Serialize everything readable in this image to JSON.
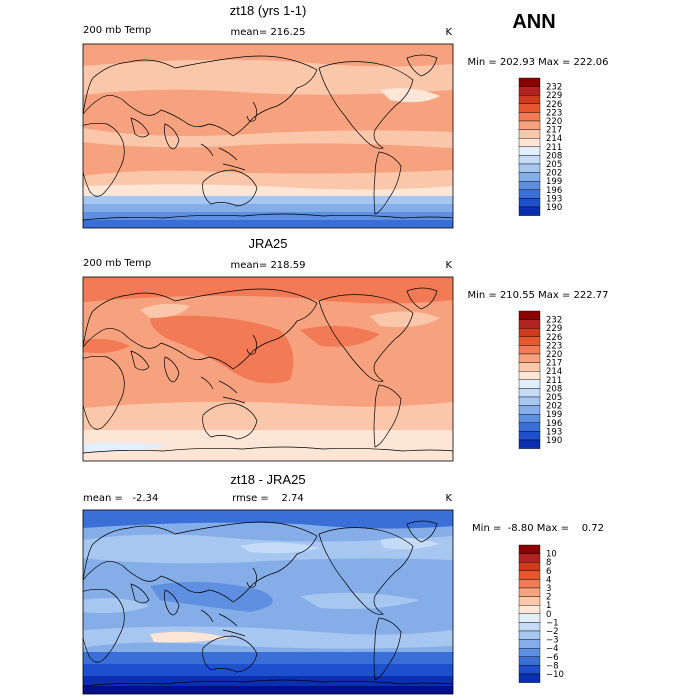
{
  "season": "ANN",
  "palette": {
    "reds": [
      "#8b0000",
      "#b22222",
      "#d03a1f",
      "#e8562f",
      "#f27a54",
      "#f7a27f",
      "#fbc7ab",
      "#fde6d6"
    ],
    "blues": [
      "#e3eefb",
      "#c6dcf6",
      "#a7c6f0",
      "#85aee9",
      "#5f8fe1",
      "#3a6fd8",
      "#1e4fcc",
      "#0b2fb0",
      "#00108a"
    ]
  },
  "chart_data": [
    {
      "type": "heatmap",
      "title": "zt18 (yrs 1-1)",
      "left_label": "200 mb Temp",
      "center_label": "mean= 216.25",
      "units": "K",
      "minmax": "Min = 202.93 Max = 222.06",
      "colorbar_levels": [
        "232",
        "229",
        "226",
        "223",
        "220",
        "217",
        "214",
        "211",
        "208",
        "205",
        "202",
        "199",
        "196",
        "193",
        "190"
      ],
      "field": "model 200 mb temperature, annual mean; warm tropics/mid-latitudes ~214-220 K, cold Antarctic band ~193-208 K"
    },
    {
      "type": "heatmap",
      "title": "JRA25",
      "left_label": "200 mb Temp",
      "center_label": "mean= 218.59",
      "units": "K",
      "minmax": "Min = 210.55 Max = 222.77",
      "colorbar_levels": [
        "232",
        "229",
        "226",
        "223",
        "220",
        "217",
        "214",
        "211",
        "208",
        "205",
        "202",
        "199",
        "196",
        "193",
        "190"
      ],
      "field": "reanalysis 200 mb temperature; mostly 217-223 K, warmest over western Pacific, cooler ~211-214 K at southern high latitudes"
    },
    {
      "type": "heatmap",
      "title": "zt18 - JRA25",
      "left_label": "mean =   -2.34",
      "center_label": "rmse =    2.74",
      "units": "K",
      "minmax": "Min =  -8.80 Max =    0.72",
      "colorbar_levels": [
        "10",
        "8",
        "6",
        "4",
        "3",
        "2",
        "1",
        "0",
        "−1",
        "−2",
        "−3",
        "−4",
        "−6",
        "−8",
        "−10"
      ],
      "field": "difference field; mostly negative (-1 to -4), strongest cold bias (-6 to -10) near Antarctica, small positive patches near 0-1"
    }
  ]
}
